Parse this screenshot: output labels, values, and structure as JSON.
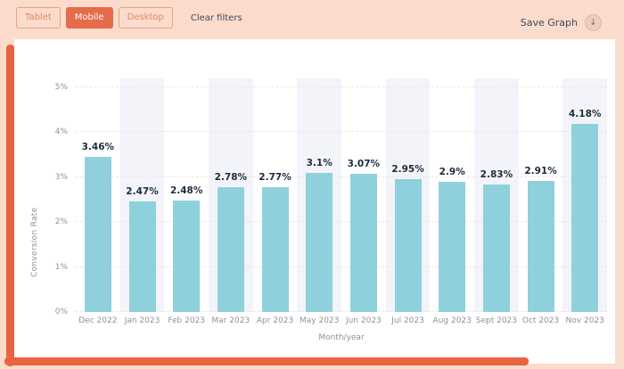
{
  "filters": {
    "tablet": "Tablet",
    "mobile": "Mobile",
    "desktop": "Desktop",
    "clear": "Clear filters",
    "active": "Mobile"
  },
  "save_graph": {
    "label": "Save Graph",
    "icon": "download-circle-icon",
    "icon_glyph": "↓"
  },
  "chart_data": {
    "type": "bar",
    "title": "",
    "xlabel": "Month/year",
    "ylabel": "Conversion Rate",
    "categories": [
      "Dec 2022",
      "Jan 2023",
      "Feb 2023",
      "Mar 2023",
      "Apr 2023",
      "May 2023",
      "Jun 2023",
      "Jul 2023",
      "Aug 2023",
      "Sept 2023",
      "Oct 2023",
      "Nov 2023"
    ],
    "values": [
      3.46,
      2.47,
      2.48,
      2.78,
      2.77,
      3.1,
      3.07,
      2.95,
      2.9,
      2.83,
      2.91,
      4.18
    ],
    "value_labels": [
      "3.46%",
      "2.47%",
      "2.48%",
      "2.78%",
      "2.77%",
      "3.1%",
      "3.07%",
      "2.95%",
      "2.9%",
      "2.83%",
      "2.91%",
      "4.18%"
    ],
    "y_ticks": [
      "0%",
      "1%",
      "2%",
      "3%",
      "4%",
      "5%"
    ],
    "ylim": [
      0,
      5
    ],
    "grid": "horizontal-dashed",
    "banded_columns": "alternate-odd",
    "legend": "none"
  },
  "colors": {
    "page_background": "#fbdbcc",
    "card_background": "#ffffff",
    "accent_orange": "#e56b4a",
    "crayon_orange": "#e8633f",
    "bar_blue": "#8ed1dc",
    "band_gray": "#f3f4f9",
    "value_text": "#1e2b3a",
    "muted_text": "#8b939e",
    "dark_text": "#3d4a5c"
  }
}
